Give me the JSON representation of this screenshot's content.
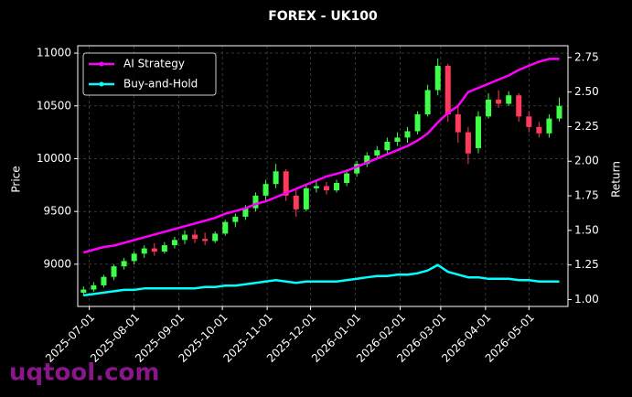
{
  "chart_data": {
    "type": "candlestick",
    "title": "FOREX - UK100",
    "ylabel": "Price",
    "y2label": "Return",
    "watermark": "uqtool.com",
    "x": [
      "2025-06-27",
      "2025-07-04",
      "2025-07-11",
      "2025-07-18",
      "2025-07-25",
      "2025-08-01",
      "2025-08-08",
      "2025-08-15",
      "2025-08-22",
      "2025-08-29",
      "2025-09-05",
      "2025-09-12",
      "2025-09-19",
      "2025-09-26",
      "2025-10-03",
      "2025-10-10",
      "2025-10-17",
      "2025-10-24",
      "2025-10-31",
      "2025-11-07",
      "2025-11-14",
      "2025-11-21",
      "2025-11-28",
      "2025-12-05",
      "2025-12-12",
      "2025-12-19",
      "2025-12-26",
      "2026-01-02",
      "2026-01-09",
      "2026-01-16",
      "2026-01-23",
      "2026-01-30",
      "2026-02-06",
      "2026-02-13",
      "2026-02-20",
      "2026-02-27",
      "2026-03-06",
      "2026-03-13",
      "2026-03-20",
      "2026-03-27",
      "2026-04-03",
      "2026-04-10",
      "2026-04-17",
      "2026-04-24",
      "2026-05-01",
      "2026-05-08",
      "2026-05-15",
      "2026-05-22"
    ],
    "open": [
      8730,
      8760,
      8800,
      8880,
      8980,
      9030,
      9100,
      9150,
      9120,
      9180,
      9230,
      9280,
      9240,
      9220,
      9290,
      9400,
      9450,
      9530,
      9650,
      9760,
      9880,
      9650,
      9520,
      9720,
      9740,
      9700,
      9770,
      9860,
      9950,
      10030,
      10080,
      10160,
      10200,
      10260,
      10420,
      10650,
      10880,
      10420,
      10250,
      10100,
      10400,
      10560,
      10520,
      10600,
      10400,
      10300,
      10240,
      10380
    ],
    "high": [
      8790,
      8830,
      8900,
      9000,
      9060,
      9120,
      9180,
      9200,
      9210,
      9260,
      9320,
      9330,
      9300,
      9310,
      9420,
      9480,
      9560,
      9680,
      9800,
      9950,
      9900,
      9700,
      9760,
      9800,
      9780,
      9800,
      9900,
      9980,
      10060,
      10120,
      10200,
      10250,
      10300,
      10450,
      10700,
      10950,
      10900,
      10500,
      10300,
      10450,
      10620,
      10650,
      10640,
      10620,
      10450,
      10350,
      10420,
      10580
    ],
    "low": [
      8700,
      8740,
      8780,
      8850,
      8950,
      9000,
      9060,
      9080,
      9100,
      9150,
      9190,
      9200,
      9180,
      9200,
      9270,
      9350,
      9420,
      9500,
      9600,
      9720,
      9600,
      9450,
      9500,
      9680,
      9660,
      9680,
      9740,
      9830,
      9920,
      9990,
      10050,
      10120,
      10150,
      10230,
      10400,
      10600,
      10350,
      10150,
      9950,
      10050,
      10380,
      10480,
      10500,
      10350,
      10250,
      10200,
      10200,
      10350
    ],
    "close": [
      8760,
      8800,
      8880,
      8980,
      9030,
      9100,
      9150,
      9120,
      9180,
      9230,
      9280,
      9240,
      9220,
      9290,
      9400,
      9450,
      9530,
      9650,
      9760,
      9880,
      9650,
      9520,
      9720,
      9740,
      9700,
      9770,
      9860,
      9950,
      10030,
      10080,
      10160,
      10200,
      10260,
      10420,
      10650,
      10880,
      10420,
      10250,
      10050,
      10400,
      10560,
      10520,
      10600,
      10400,
      10300,
      10240,
      10380,
      10500
    ],
    "up_color": "#3dff4a",
    "down_color": "#ff3a5c",
    "series": [
      {
        "name": "AI Strategy",
        "color": "#ff00ff",
        "axis": "y2",
        "values": [
          1.34,
          1.36,
          1.38,
          1.39,
          1.41,
          1.43,
          1.45,
          1.47,
          1.49,
          1.51,
          1.53,
          1.55,
          1.57,
          1.59,
          1.62,
          1.64,
          1.66,
          1.69,
          1.71,
          1.74,
          1.77,
          1.8,
          1.83,
          1.86,
          1.89,
          1.91,
          1.93,
          1.96,
          1.99,
          2.02,
          2.05,
          2.08,
          2.11,
          2.15,
          2.2,
          2.28,
          2.35,
          2.4,
          2.5,
          2.53,
          2.56,
          2.59,
          2.62,
          2.66,
          2.69,
          2.72,
          2.74,
          2.74
        ]
      },
      {
        "name": "Buy-and-Hold",
        "color": "#00ffff",
        "axis": "y2",
        "values": [
          1.03,
          1.04,
          1.05,
          1.06,
          1.07,
          1.07,
          1.08,
          1.08,
          1.08,
          1.08,
          1.08,
          1.08,
          1.09,
          1.09,
          1.1,
          1.1,
          1.11,
          1.12,
          1.13,
          1.14,
          1.13,
          1.12,
          1.13,
          1.13,
          1.13,
          1.13,
          1.14,
          1.15,
          1.16,
          1.17,
          1.17,
          1.18,
          1.18,
          1.19,
          1.21,
          1.25,
          1.2,
          1.18,
          1.16,
          1.16,
          1.15,
          1.15,
          1.15,
          1.14,
          1.14,
          1.13,
          1.13,
          1.13
        ]
      }
    ],
    "xlim": [
      "2025-06-23",
      "2026-05-28"
    ],
    "xticks": [
      "2025-07-01",
      "2025-08-01",
      "2025-09-01",
      "2025-10-01",
      "2025-11-01",
      "2025-12-01",
      "2026-01-01",
      "2026-02-01",
      "2026-03-01",
      "2026-04-01",
      "2026-05-01"
    ],
    "ylim": [
      8600,
      11070
    ],
    "yticks": [
      9000,
      9500,
      10000,
      10500,
      11000
    ],
    "y2lim": [
      0.95,
      2.835
    ],
    "y2ticks": [
      {
        "value": 1,
        "label": "1.00"
      },
      1.25,
      {
        "value": 1.5,
        "label": "1.50"
      },
      1.75,
      {
        "value": 2,
        "label": "2.00"
      },
      2.25,
      {
        "value": 2.5,
        "label": "2.50"
      },
      2.75
    ],
    "grid": true,
    "legend": "upper left"
  }
}
